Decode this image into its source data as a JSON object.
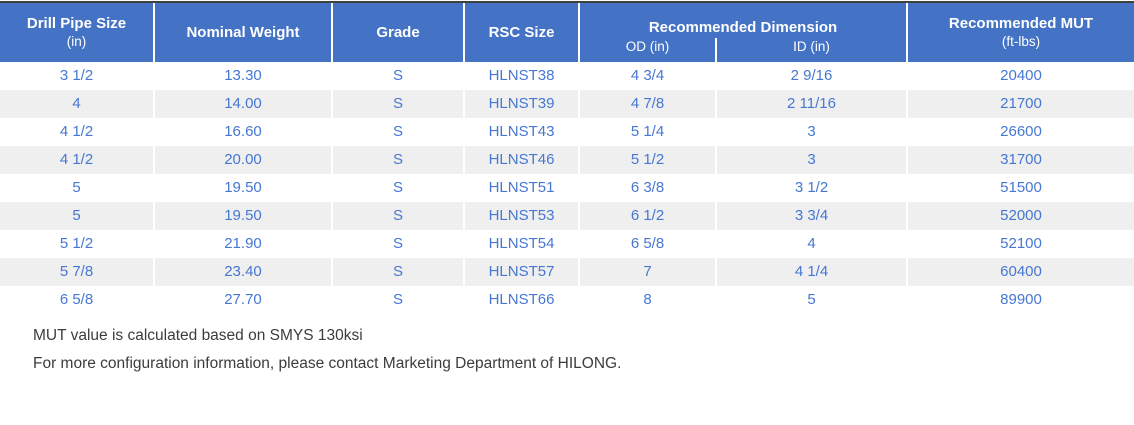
{
  "table": {
    "header": {
      "drill_pipe_size": {
        "label": "Drill Pipe Size",
        "sublabel": "(in)"
      },
      "nominal_weight": {
        "label": "Nominal Weight"
      },
      "grade": {
        "label": "Grade"
      },
      "rsc_size": {
        "label": "RSC Size"
      },
      "recommended_dimension": {
        "label": "Recommended Dimension",
        "od": "OD (in)",
        "id": "ID (in)"
      },
      "recommended_mut": {
        "label": "Recommended MUT",
        "sublabel": "(ft-lbs)"
      }
    },
    "rows": [
      [
        "3 1/2",
        "13.30",
        "S",
        "HLNST38",
        "4 3/4",
        "2 9/16",
        "20400"
      ],
      [
        "4",
        "14.00",
        "S",
        "HLNST39",
        "4 7/8",
        "2 11/16",
        "21700"
      ],
      [
        "4 1/2",
        "16.60",
        "S",
        "HLNST43",
        "5 1/4",
        "3",
        "26600"
      ],
      [
        "4 1/2",
        "20.00",
        "S",
        "HLNST46",
        "5 1/2",
        "3",
        "31700"
      ],
      [
        "5",
        "19.50",
        "S",
        "HLNST51",
        "6 3/8",
        "3 1/2",
        "51500"
      ],
      [
        "5",
        "19.50",
        "S",
        "HLNST53",
        "6 1/2",
        "3 3/4",
        "52000"
      ],
      [
        "5 1/2",
        "21.90",
        "S",
        "HLNST54",
        "6 5/8",
        "4",
        "52100"
      ],
      [
        "5 7/8",
        "23.40",
        "S",
        "HLNST57",
        "7",
        "4 1/4",
        "60400"
      ],
      [
        "6 5/8",
        "27.70",
        "S",
        "HLNST66",
        "8",
        "5",
        "89900"
      ]
    ]
  },
  "notes": {
    "mut_basis": "MUT value is calculated based on SMYS 130ksi",
    "contact": "For more configuration information, please contact Marketing Department of HILONG."
  },
  "colors": {
    "header_bg": "#4472C4",
    "header_text": "#FFFFFF",
    "body_text": "#4677D2",
    "row_stripe": "#EFEFEF",
    "top_border": "#404040",
    "note_text": "#3C3C3C"
  }
}
